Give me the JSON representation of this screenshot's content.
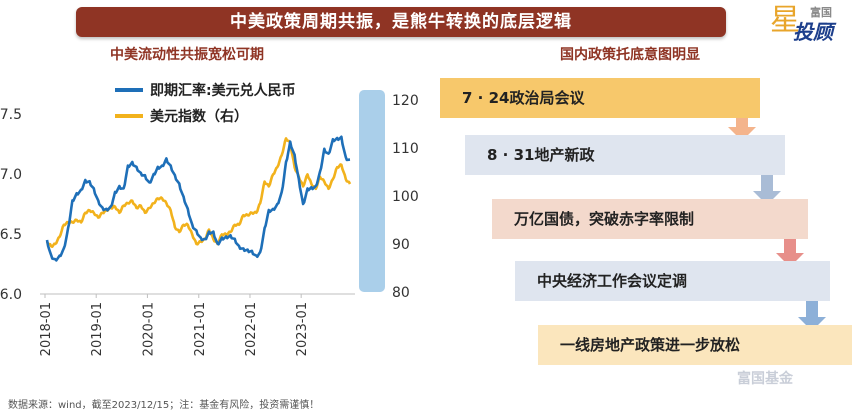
{
  "banner": {
    "title": "中美政策周期共振，是熊牛转换的底层逻辑"
  },
  "logo": {
    "small": "富国",
    "star": "星",
    "name": "投顾"
  },
  "left_title": "中美流动性共振宽松可期",
  "right_title": "国内政策托底意图明显",
  "source": "数据来源：wind，截至2023/12/15；注：基金有风险，投资需谨慎！",
  "watermark": "富国基金",
  "colors": {
    "rmb": "#1e6fb8",
    "dxy": "#f2b21c",
    "band": "#aacfea",
    "banner": "#8f3424"
  },
  "steps": [
    {
      "label": "7 · 24政治局会议",
      "bg": "#f7c86b",
      "arrow": "#f4b48c"
    },
    {
      "label": "8 · 31地产新政",
      "bg": "#dfe5ef",
      "arrow": "#a9bcd6"
    },
    {
      "label": "万亿国债，突破赤字率限制",
      "bg": "#f3d9cc",
      "arrow": "#e78f8a"
    },
    {
      "label": "中央经济工作会议定调",
      "bg": "#dfe5ef",
      "arrow": "#8db0d8"
    },
    {
      "label": "一线房地产政策进一步放松",
      "bg": "#fbe6bd",
      "arrow": ""
    }
  ],
  "chart_data": {
    "type": "line",
    "legend": [
      "即期汇率:美元兑人民币",
      "美元指数（右）"
    ],
    "y_left": {
      "ylim": [
        6.0,
        7.5
      ],
      "ticks": [
        "6.0",
        "6.5",
        "7.0",
        "7.5"
      ]
    },
    "y_right": {
      "ylim": [
        80,
        120
      ],
      "ticks": [
        "80",
        "90",
        "100",
        "110",
        "120"
      ]
    },
    "x_ticks": [
      "2018-01",
      "2019-01",
      "2020-01",
      "2021-01",
      "2022-01",
      "2023-01"
    ],
    "x_range": [
      "2018-01-01",
      "2023-12-15"
    ],
    "series": [
      {
        "name": "即期汇率:美元兑人民币",
        "axis": "left",
        "x": [
          "2018-01",
          "2018-02",
          "2018-03",
          "2018-04",
          "2018-05",
          "2018-06",
          "2018-07",
          "2018-08",
          "2018-09",
          "2018-10",
          "2018-11",
          "2018-12",
          "2019-01",
          "2019-02",
          "2019-03",
          "2019-04",
          "2019-05",
          "2019-06",
          "2019-07",
          "2019-08",
          "2019-09",
          "2019-10",
          "2019-11",
          "2019-12",
          "2020-01",
          "2020-02",
          "2020-03",
          "2020-04",
          "2020-05",
          "2020-06",
          "2020-07",
          "2020-08",
          "2020-09",
          "2020-10",
          "2020-11",
          "2020-12",
          "2021-01",
          "2021-02",
          "2021-03",
          "2021-04",
          "2021-05",
          "2021-06",
          "2021-07",
          "2021-08",
          "2021-09",
          "2021-10",
          "2021-11",
          "2021-12",
          "2022-01",
          "2022-02",
          "2022-03",
          "2022-04",
          "2022-05",
          "2022-06",
          "2022-07",
          "2022-08",
          "2022-09",
          "2022-10",
          "2022-11",
          "2022-12",
          "2023-01",
          "2023-02",
          "2023-03",
          "2023-04",
          "2023-05",
          "2023-06",
          "2023-07",
          "2023-08",
          "2023-09",
          "2023-10",
          "2023-11",
          "2023-12"
        ],
        "values": [
          6.45,
          6.32,
          6.29,
          6.32,
          6.38,
          6.55,
          6.78,
          6.84,
          6.87,
          6.95,
          6.94,
          6.88,
          6.78,
          6.72,
          6.71,
          6.73,
          6.85,
          6.9,
          6.88,
          7.07,
          7.1,
          7.06,
          7.01,
          6.99,
          6.93,
          7.0,
          7.06,
          7.07,
          7.13,
          7.07,
          6.99,
          6.92,
          6.81,
          6.71,
          6.58,
          6.53,
          6.47,
          6.46,
          6.52,
          6.52,
          6.42,
          6.47,
          6.48,
          6.49,
          6.46,
          6.4,
          6.38,
          6.37,
          6.36,
          6.32,
          6.35,
          6.55,
          6.7,
          6.71,
          6.75,
          6.85,
          7.1,
          7.27,
          7.16,
          6.96,
          6.75,
          6.88,
          6.89,
          6.9,
          7.02,
          7.21,
          7.17,
          7.29,
          7.3,
          7.31,
          7.14,
          7.12
        ]
      },
      {
        "name": "美元指数（右）",
        "axis": "right",
        "x": [
          "2018-01",
          "2018-02",
          "2018-03",
          "2018-04",
          "2018-05",
          "2018-06",
          "2018-07",
          "2018-08",
          "2018-09",
          "2018-10",
          "2018-11",
          "2018-12",
          "2019-01",
          "2019-02",
          "2019-03",
          "2019-04",
          "2019-05",
          "2019-06",
          "2019-07",
          "2019-08",
          "2019-09",
          "2019-10",
          "2019-11",
          "2019-12",
          "2020-01",
          "2020-02",
          "2020-03",
          "2020-04",
          "2020-05",
          "2020-06",
          "2020-07",
          "2020-08",
          "2020-09",
          "2020-10",
          "2020-11",
          "2020-12",
          "2021-01",
          "2021-02",
          "2021-03",
          "2021-04",
          "2021-05",
          "2021-06",
          "2021-07",
          "2021-08",
          "2021-09",
          "2021-10",
          "2021-11",
          "2021-12",
          "2022-01",
          "2022-02",
          "2022-03",
          "2022-04",
          "2022-05",
          "2022-06",
          "2022-07",
          "2022-08",
          "2022-09",
          "2022-10",
          "2022-11",
          "2022-12",
          "2023-01",
          "2023-02",
          "2023-03",
          "2023-04",
          "2023-05",
          "2023-06",
          "2023-07",
          "2023-08",
          "2023-09",
          "2023-10",
          "2023-11",
          "2023-12"
        ],
        "values": [
          90.5,
          89.5,
          90.0,
          91.5,
          94.0,
          94.5,
          94.5,
          95.0,
          94.5,
          96.5,
          97.0,
          96.5,
          95.5,
          96.5,
          97.0,
          97.5,
          97.8,
          96.5,
          98.0,
          98.5,
          99.0,
          97.5,
          98.0,
          96.5,
          97.5,
          98.5,
          99.5,
          99.5,
          98.5,
          97.0,
          93.5,
          92.5,
          94.0,
          94.0,
          92.0,
          90.0,
          90.5,
          91.0,
          93.0,
          91.0,
          90.0,
          92.0,
          92.0,
          92.5,
          94.0,
          94.0,
          96.0,
          96.0,
          96.5,
          96.5,
          98.5,
          103.0,
          102.0,
          104.5,
          106.0,
          108.5,
          112.0,
          111.0,
          106.0,
          104.0,
          102.0,
          104.5,
          102.5,
          101.5,
          104.0,
          103.0,
          101.5,
          103.5,
          106.0,
          106.5,
          103.5,
          102.5
        ]
      }
    ]
  }
}
